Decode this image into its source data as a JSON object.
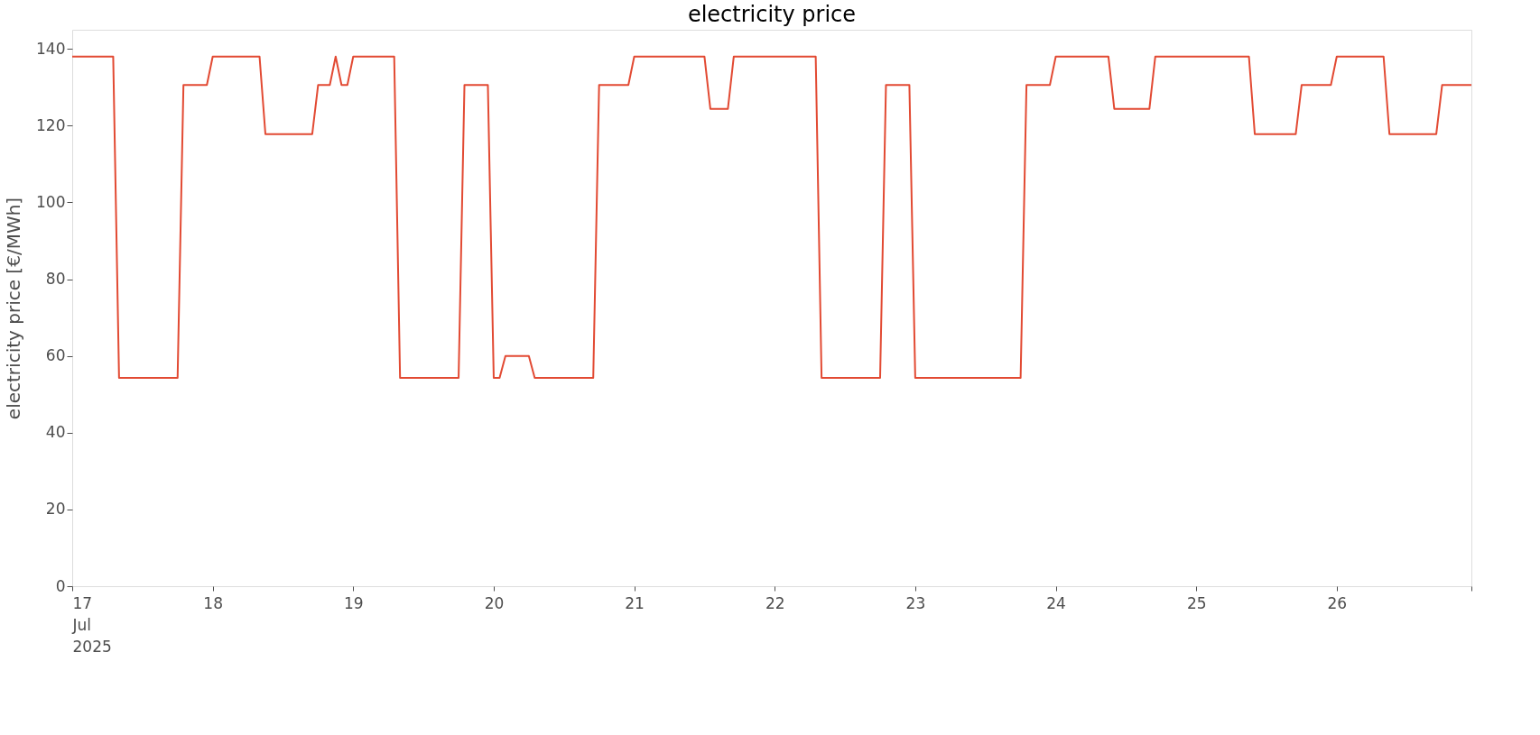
{
  "chart_data": {
    "type": "line",
    "title": "electricity price",
    "ylabel": "electricity price [€/MWh]",
    "x": [
      "2025-07-17T00:00",
      "2025-07-17T07:00",
      "2025-07-17T08:00",
      "2025-07-17T18:00",
      "2025-07-17T19:00",
      "2025-07-17T23:00",
      "2025-07-18T00:00",
      "2025-07-18T08:00",
      "2025-07-18T09:00",
      "2025-07-18T17:00",
      "2025-07-18T18:00",
      "2025-07-18T20:00",
      "2025-07-18T21:00",
      "2025-07-18T22:00",
      "2025-07-18T23:00",
      "2025-07-19T00:00",
      "2025-07-19T07:00",
      "2025-07-19T08:00",
      "2025-07-19T18:00",
      "2025-07-19T19:00",
      "2025-07-19T23:00",
      "2025-07-20T00:00",
      "2025-07-20T01:00",
      "2025-07-20T02:00",
      "2025-07-20T06:00",
      "2025-07-20T07:00",
      "2025-07-20T17:00",
      "2025-07-20T18:00",
      "2025-07-20T23:00",
      "2025-07-21T00:00",
      "2025-07-21T12:00",
      "2025-07-21T13:00",
      "2025-07-21T16:00",
      "2025-07-21T17:00",
      "2025-07-22T07:00",
      "2025-07-22T08:00",
      "2025-07-22T18:00",
      "2025-07-22T19:00",
      "2025-07-22T23:00",
      "2025-07-23T00:00",
      "2025-07-23T18:00",
      "2025-07-23T19:00",
      "2025-07-23T23:00",
      "2025-07-24T00:00",
      "2025-07-24T09:00",
      "2025-07-24T10:00",
      "2025-07-24T16:00",
      "2025-07-24T17:00",
      "2025-07-25T09:00",
      "2025-07-25T10:00",
      "2025-07-25T17:00",
      "2025-07-25T18:00",
      "2025-07-25T23:00",
      "2025-07-26T00:00",
      "2025-07-26T08:00",
      "2025-07-26T09:00",
      "2025-07-26T17:00",
      "2025-07-26T18:00",
      "2025-07-26T23:00"
    ],
    "series": [
      {
        "color": "#e24a33",
        "values": [
          138,
          138,
          54.3,
          54.3,
          130.6,
          130.6,
          138,
          138,
          117.8,
          117.8,
          130.6,
          130.6,
          138,
          130.6,
          130.6,
          138,
          138,
          54.3,
          54.3,
          130.6,
          130.6,
          54.3,
          54.3,
          60,
          60,
          54.3,
          54.3,
          130.6,
          130.6,
          138,
          138,
          124.4,
          124.4,
          138,
          138,
          54.3,
          54.3,
          130.6,
          130.6,
          54.3,
          54.3,
          130.6,
          130.6,
          138,
          138,
          124.4,
          124.4,
          138,
          138,
          117.8,
          117.8,
          130.6,
          130.6,
          138,
          138,
          117.8,
          117.8,
          130.6,
          130.6
        ]
      }
    ],
    "xlim": [
      "2025-07-17T00:00",
      "2025-07-26T23:00"
    ],
    "xticks": [
      {
        "value": "2025-07-17T00:00",
        "label": "17\nJul\n2025"
      },
      {
        "value": "2025-07-18T00:00",
        "label": "18"
      },
      {
        "value": "2025-07-19T00:00",
        "label": "19"
      },
      {
        "value": "2025-07-20T00:00",
        "label": "20"
      },
      {
        "value": "2025-07-21T00:00",
        "label": "21"
      },
      {
        "value": "2025-07-22T00:00",
        "label": "22"
      },
      {
        "value": "2025-07-23T00:00",
        "label": "23"
      },
      {
        "value": "2025-07-24T00:00",
        "label": "24"
      },
      {
        "value": "2025-07-25T00:00",
        "label": "25"
      },
      {
        "value": "2025-07-26T00:00",
        "label": "26"
      },
      {
        "value": "2025-07-26T23:00",
        "label": null
      }
    ],
    "ylim": [
      0,
      145
    ],
    "yticks": [
      0,
      20,
      40,
      60,
      80,
      100,
      120,
      140
    ],
    "grid": false,
    "legend": false,
    "line_style": "solid",
    "marker": "none"
  }
}
